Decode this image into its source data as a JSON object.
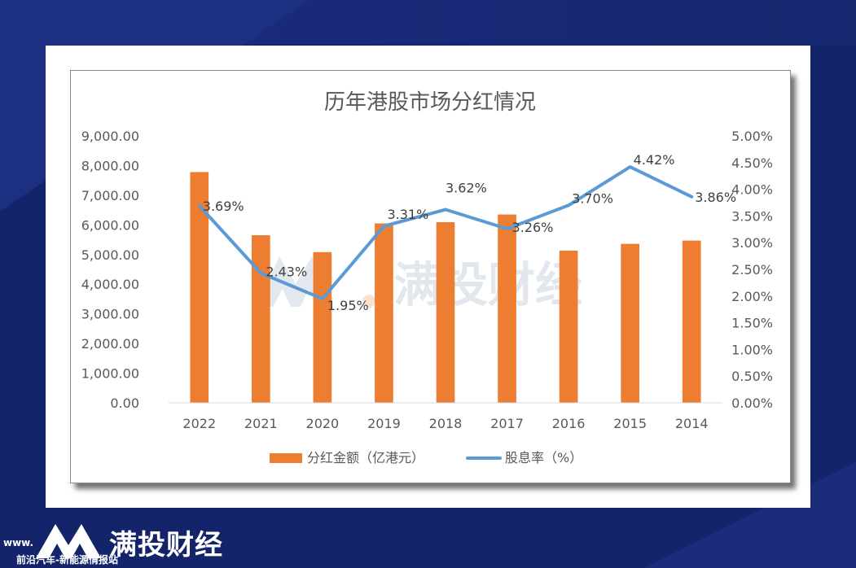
{
  "chart_data": {
    "type": "bar",
    "title": "历年港股市场分红情况",
    "categories": [
      "2022",
      "2021",
      "2020",
      "2019",
      "2018",
      "2017",
      "2016",
      "2015",
      "2014"
    ],
    "series": [
      {
        "name": "分红金额（亿港元）",
        "type": "bar",
        "axis": "left",
        "color": "#ed7d31",
        "values": [
          7780,
          5650,
          5080,
          6050,
          6090,
          6350,
          5130,
          5360,
          5470
        ]
      },
      {
        "name": "股息率（%）",
        "type": "line",
        "axis": "right",
        "color": "#5b9bd5",
        "values": [
          3.69,
          2.43,
          1.95,
          3.31,
          3.62,
          3.26,
          3.7,
          4.42,
          3.86
        ],
        "labels": [
          "3.69%",
          "2.43%",
          "1.95%",
          "3.31%",
          "3.62%",
          "3.26%",
          "3.70%",
          "4.42%",
          "3.86%"
        ]
      }
    ],
    "y_left": {
      "ylim": [
        0,
        9000
      ],
      "ticks": [
        "0.00",
        "1,000.00",
        "2,000.00",
        "3,000.00",
        "4,000.00",
        "5,000.00",
        "6,000.00",
        "7,000.00",
        "8,000.00",
        "9,000.00"
      ]
    },
    "y_right": {
      "ylim": [
        0,
        5
      ],
      "ticks": [
        "0.00%",
        "0.50%",
        "1.00%",
        "1.50%",
        "2.00%",
        "2.50%",
        "3.00%",
        "3.50%",
        "4.00%",
        "4.50%",
        "5.00%"
      ]
    },
    "grid": false,
    "legend": "bottom"
  },
  "watermark": {
    "text": "满投财经"
  },
  "footer": {
    "brand": "满投财经",
    "url": "www.",
    "subtitle": "前沿汽车-新能源情报站"
  }
}
